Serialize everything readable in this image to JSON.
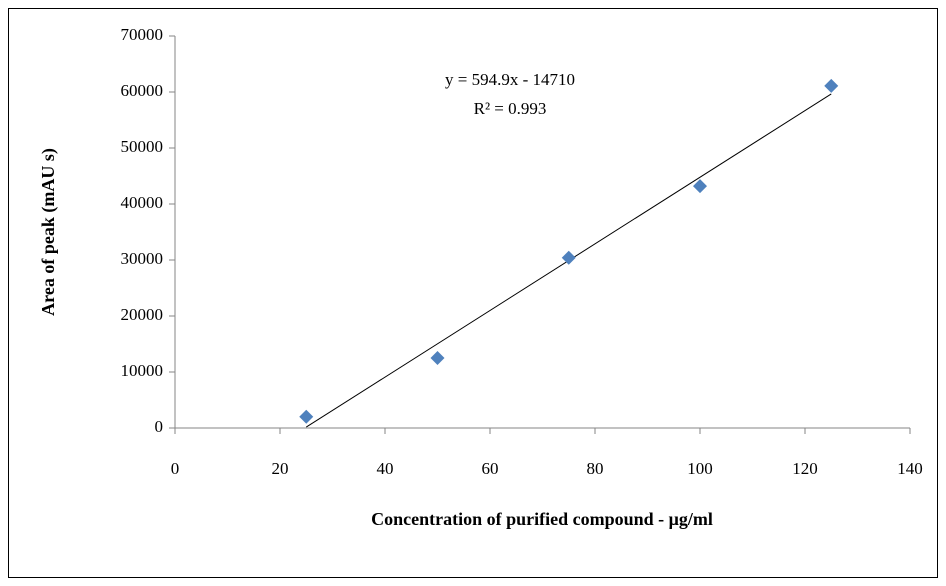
{
  "chart_data": {
    "type": "scatter",
    "xlabel": "Concentration of purified compound -  μg/ml",
    "ylabel": "Area of peak (mAU s)",
    "series": [
      {
        "color": "#4f81bd",
        "x": [
          25,
          50,
          75,
          100,
          125
        ],
        "values": [
          2000,
          12500,
          30400,
          43200,
          61100
        ]
      }
    ],
    "trendline": {
      "slope": 594.9,
      "intercept": -14710,
      "equation": "y = 594.9x - 14710",
      "r_squared": "R² = 0.993",
      "color": "#000000"
    },
    "xlim": [
      0,
      140
    ],
    "xticks": [
      0,
      20,
      40,
      60,
      80,
      100,
      120,
      140
    ],
    "ylim": [
      0,
      70000
    ],
    "yticks": [
      0,
      10000,
      20000,
      30000,
      40000,
      50000,
      60000,
      70000
    ],
    "grid": false
  }
}
